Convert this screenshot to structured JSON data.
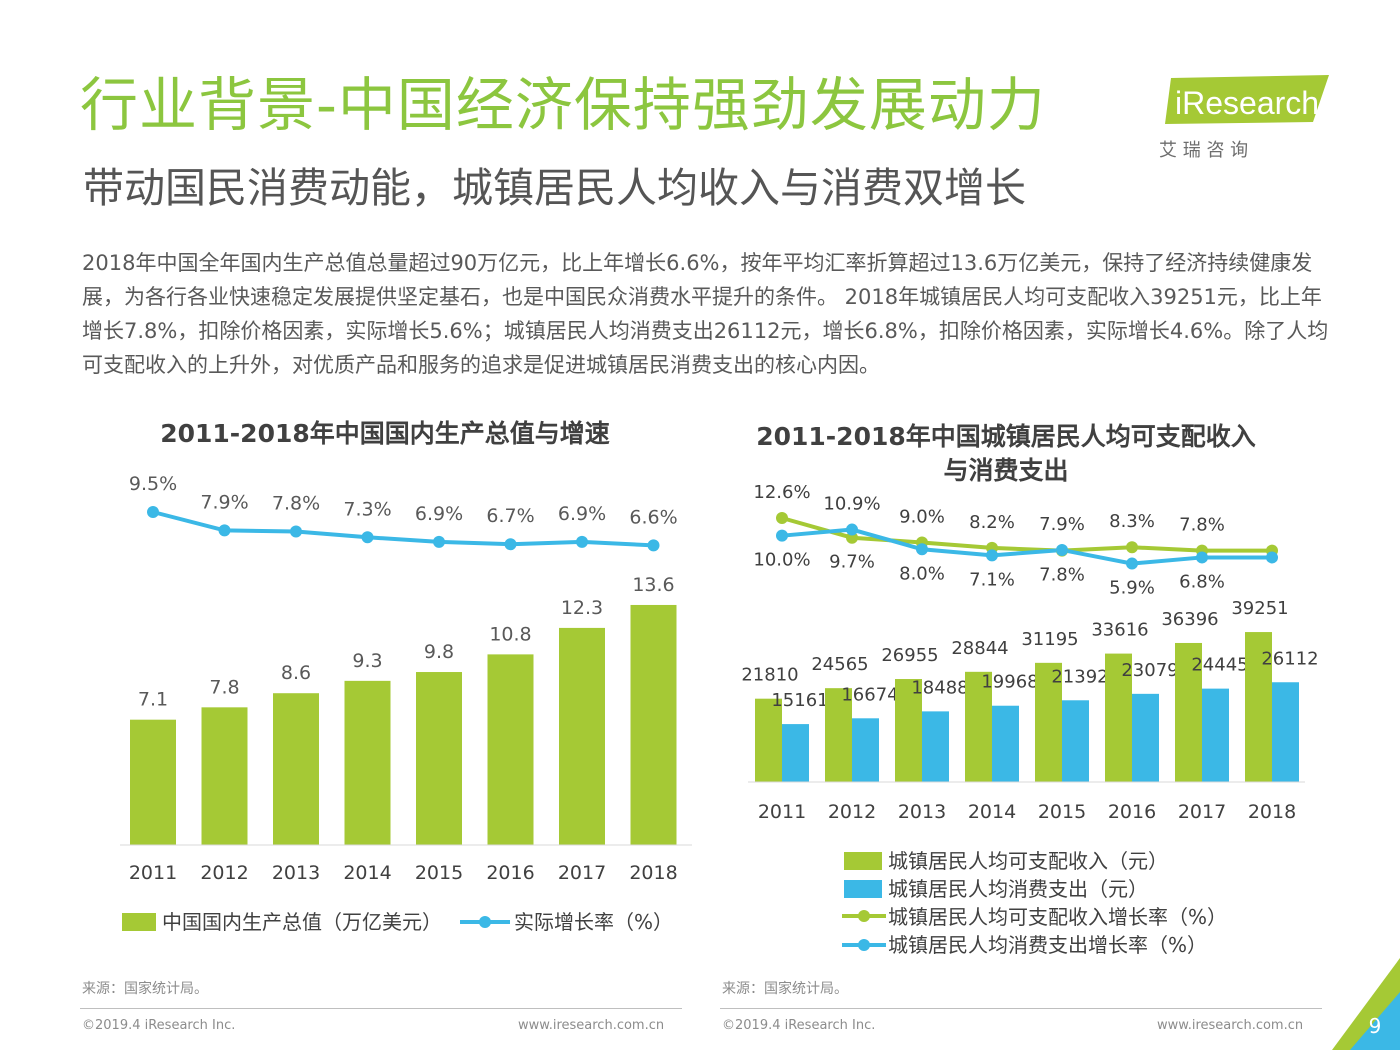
{
  "title": "行业背景-中国经济保持强劲发展动力",
  "subtitle": "带动国民消费动能，城镇居民人均收入与消费双增长",
  "body_text": "2018年中国全年国内生产总值总量超过90万亿元，比上年增长6.6%，按年平均汇率折算超过13.6万亿美元，保持了经济持续健康发展，为各行各业快速稳定发展提供坚定基石，也是中国民众消费水平提升的条件。 2018年城镇居民人均可支配收入39251元，比上年增长7.8%，扣除价格因素，实际增长5.6%；城镇居民人均消费支出26112元，增长6.8%，扣除价格因素，实际增长4.6%。除了人均可支配收入的上升外，对优质产品和服务的追求是促进城镇居民消费支出的核心内因。",
  "logo": {
    "brand": "iResearch",
    "cn": "艾 瑞 咨 询"
  },
  "colors": {
    "green": "#a5c935",
    "blue": "#3bb8e6",
    "title_green": "#8cc63f",
    "text": "#404040"
  },
  "chart_data": [
    {
      "type": "bar",
      "title": "2011-2018年中国国内生产总值与增速",
      "categories": [
        "2011",
        "2012",
        "2013",
        "2014",
        "2015",
        "2016",
        "2017",
        "2018"
      ],
      "series": [
        {
          "name": "中国国内生产总值（万亿美元）",
          "type": "bar",
          "color": "#a5c935",
          "values": [
            7.1,
            7.8,
            8.6,
            9.3,
            9.8,
            10.8,
            12.3,
            13.6
          ]
        },
        {
          "name": "实际增长率（%）",
          "type": "line",
          "color": "#3bb8e6",
          "values": [
            9.5,
            7.9,
            7.8,
            7.3,
            6.9,
            6.7,
            6.9,
            6.6
          ],
          "labels": [
            "9.5%",
            "7.9%",
            "7.8%",
            "7.3%",
            "6.9%",
            "6.7%",
            "6.9%",
            "6.6%"
          ]
        }
      ],
      "legend": "bottom"
    },
    {
      "type": "bar",
      "title": "2011-2018年中国城镇居民人均可支配收入",
      "title_line2": "与消费支出",
      "categories": [
        "2011",
        "2012",
        "2013",
        "2014",
        "2015",
        "2016",
        "2017",
        "2018"
      ],
      "series": [
        {
          "name": "城镇居民人均可支配收入（元）",
          "type": "bar",
          "color": "#a5c935",
          "values": [
            21810,
            24565,
            26955,
            28844,
            31195,
            33616,
            36396,
            39251
          ]
        },
        {
          "name": "城镇居民人均消费支出（元）",
          "type": "bar",
          "color": "#3bb8e6",
          "values": [
            15161,
            16674,
            18488,
            19968,
            21392,
            23079,
            24445,
            26112
          ]
        },
        {
          "name": "城镇居民人均可支配收入增长率（%）",
          "type": "line",
          "color": "#a5c935",
          "values": [
            12.6,
            9.7,
            9.0,
            8.2,
            7.8,
            8.3,
            7.8,
            7.8
          ],
          "labels": [
            "12.6%",
            "9.7%",
            "9.0%",
            "8.2%",
            "7.8%",
            "8.3%",
            "7.8%",
            ""
          ]
        },
        {
          "name": "城镇居民人均消费支出增长率（%）",
          "type": "line",
          "color": "#3bb8e6",
          "values": [
            10.0,
            10.9,
            8.0,
            7.1,
            7.9,
            5.9,
            6.8,
            6.8
          ],
          "labels": [
            "10.0%",
            "10.9%",
            "8.0%",
            "7.1%",
            "7.9%",
            "5.9%",
            "6.8%",
            ""
          ]
        }
      ],
      "legend": "bottom"
    }
  ],
  "sources": {
    "left": "来源：国家统计局。",
    "right": "来源：国家统计局。"
  },
  "footer": {
    "copyright_left": "©2019.4 iResearch Inc.",
    "url_left": "www.iresearch.com.cn",
    "copyright_right": "©2019.4 iResearch Inc.",
    "url_right": "www.iresearch.com.cn"
  },
  "page_number": "9"
}
